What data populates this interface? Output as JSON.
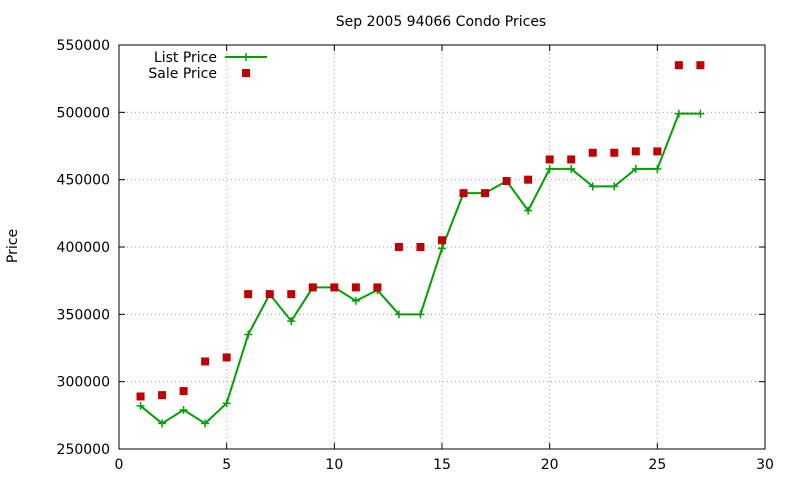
{
  "chart_data": {
    "type": "line",
    "title": "Sep 2005 94066 Condo Prices",
    "xlabel": "",
    "ylabel": "Price",
    "xlim": [
      0,
      30
    ],
    "ylim": [
      250000,
      550000
    ],
    "xticks": [
      0,
      5,
      10,
      15,
      20,
      25,
      30
    ],
    "yticks": [
      250000,
      300000,
      350000,
      400000,
      450000,
      500000,
      550000
    ],
    "grid": true,
    "legend_position": "top-left",
    "x": [
      1,
      2,
      3,
      4,
      5,
      6,
      7,
      8,
      9,
      10,
      11,
      12,
      13,
      14,
      15,
      16,
      17,
      18,
      19,
      20,
      21,
      22,
      23,
      24,
      25,
      26,
      27
    ],
    "series": [
      {
        "name": "List Price",
        "style": "line-plus",
        "color": "#00a000",
        "values": [
          282000,
          269000,
          279000,
          269000,
          284000,
          335000,
          365000,
          345000,
          370000,
          370000,
          360000,
          368000,
          350000,
          350000,
          399000,
          440000,
          440000,
          449000,
          427000,
          458000,
          458000,
          445000,
          445000,
          458000,
          458000,
          499000,
          499000
        ]
      },
      {
        "name": "Sale Price",
        "style": "square",
        "color": "#c00000",
        "values": [
          289000,
          290000,
          293000,
          315000,
          318000,
          365000,
          365000,
          365000,
          370000,
          370000,
          370000,
          370000,
          400000,
          400000,
          405000,
          440000,
          440000,
          449000,
          450000,
          465000,
          465000,
          470000,
          470000,
          471000,
          471000,
          535000,
          535000
        ]
      }
    ]
  }
}
